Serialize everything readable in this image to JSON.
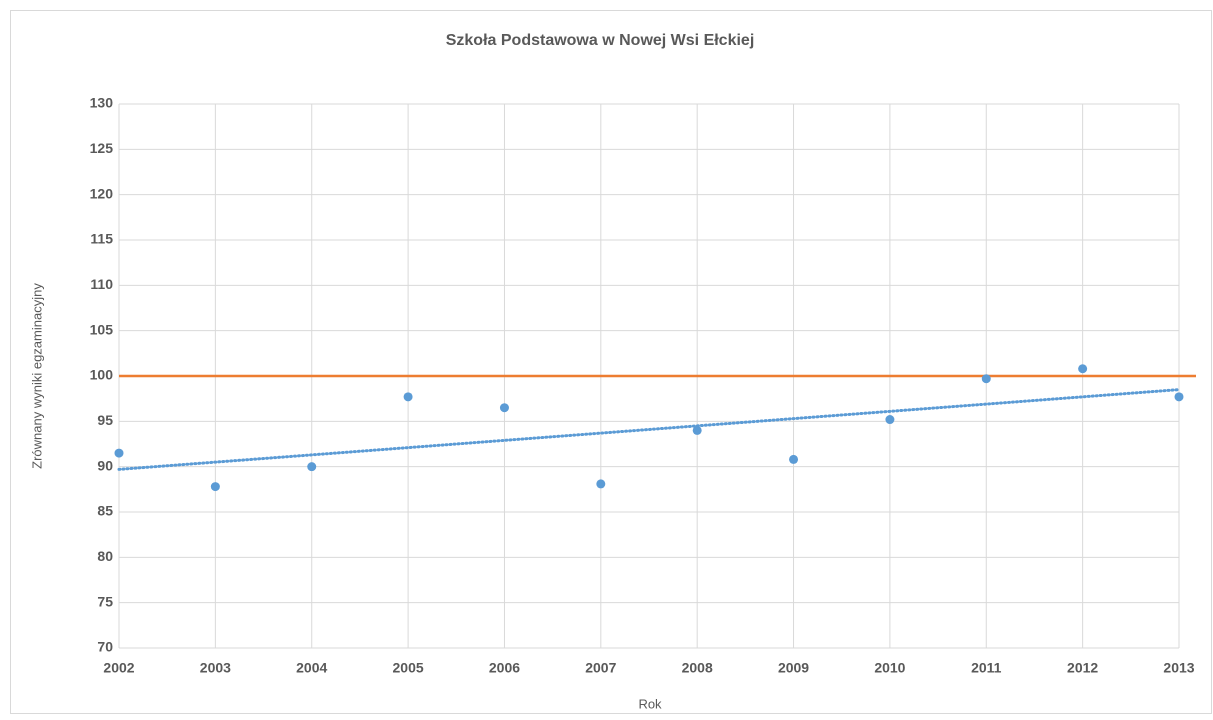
{
  "chart_data": {
    "type": "scatter",
    "title": "Szkoła Podstawowa w Nowej Wsi Ełckiej",
    "xlabel": "Rok",
    "ylabel": "Zrównany wyniki egzaminacyjny",
    "x": [
      2002,
      2003,
      2004,
      2005,
      2006,
      2007,
      2008,
      2009,
      2010,
      2011,
      2012,
      2013
    ],
    "series": [
      {
        "color": "#5b9bd5",
        "values": [
          91.5,
          87.8,
          90,
          97.7,
          96.5,
          88.1,
          94,
          90.8,
          95.2,
          99.7,
          100.8,
          97.7
        ]
      }
    ],
    "trendline": {
      "x": [
        2002,
        2013
      ],
      "values": [
        89.7,
        98.5
      ],
      "color": "#5b9bd5"
    },
    "reference_line": {
      "value": 100,
      "color": "#ed7d31"
    },
    "xlim": [
      2002,
      2013
    ],
    "xticks": [
      2002,
      2003,
      2004,
      2005,
      2006,
      2007,
      2008,
      2009,
      2010,
      2011,
      2012,
      2013
    ],
    "ylim": [
      70,
      130
    ],
    "yticks": [
      70,
      75,
      80,
      85,
      90,
      95,
      100,
      105,
      110,
      115,
      120,
      125,
      130
    ],
    "grid": true
  }
}
